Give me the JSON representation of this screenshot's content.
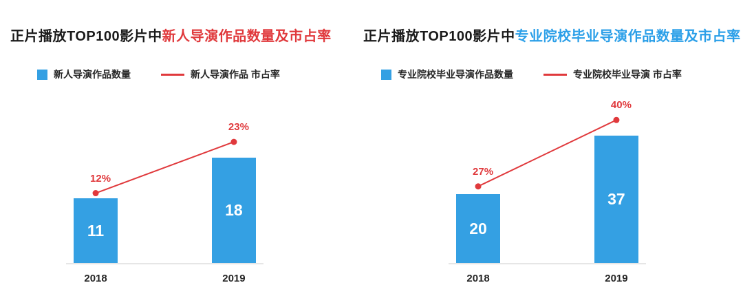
{
  "colors": {
    "bar_blue": "#34a0e3",
    "line_red": "#e0393c",
    "title_text": "#1a1a1a",
    "axis_label_text": "#262626",
    "baseline_gray": "#e6e6e6",
    "bar_value_text": "#ffffff"
  },
  "chart_data": [
    {
      "type": "bar",
      "title": "正片播放TOP100影片中新人导演作品数量及市占率",
      "title_prefix": "正片播放TOP100影片中",
      "title_highlight": "新人导演作品数量及市占率",
      "highlight_color": "#e0393c",
      "categories": [
        "2018",
        "2019"
      ],
      "series": [
        {
          "name": "新人导演作品数量",
          "kind": "bar",
          "values": [
            11,
            18
          ],
          "value_labels": [
            "11",
            "18"
          ],
          "color": "#34a0e3",
          "ylim": [
            0,
            27
          ]
        },
        {
          "name": "新人导演作品 市占率",
          "kind": "line",
          "values": [
            12,
            23
          ],
          "value_labels": [
            "12%",
            "23%"
          ],
          "unit": "%",
          "color": "#e0393c",
          "ylim": [
            -3,
            31
          ]
        }
      ],
      "legend_position": "top",
      "grid": false,
      "xlabel": "",
      "ylabel": ""
    },
    {
      "type": "bar",
      "title": "正片播放TOP100影片中专业院校毕业导演作品数量及市占率",
      "title_prefix": "正片播放TOP100影片中",
      "title_highlight": "专业院校毕业导演作品数量及市占率",
      "highlight_color": "#2b9fe8",
      "categories": [
        "2018",
        "2019"
      ],
      "series": [
        {
          "name": "专业院校毕业导演作品数量",
          "kind": "bar",
          "values": [
            20,
            37
          ],
          "value_labels": [
            "20",
            "37"
          ],
          "color": "#34a0e3",
          "ylim": [
            0,
            46
          ]
        },
        {
          "name": "专业院校毕业导演 市占率",
          "kind": "line",
          "values": [
            27,
            40
          ],
          "value_labels": [
            "27%",
            "40%"
          ],
          "unit": "%",
          "color": "#e0393c",
          "ylim": [
            12,
            43
          ]
        }
      ],
      "legend_position": "top",
      "grid": false,
      "xlabel": "",
      "ylabel": ""
    }
  ]
}
